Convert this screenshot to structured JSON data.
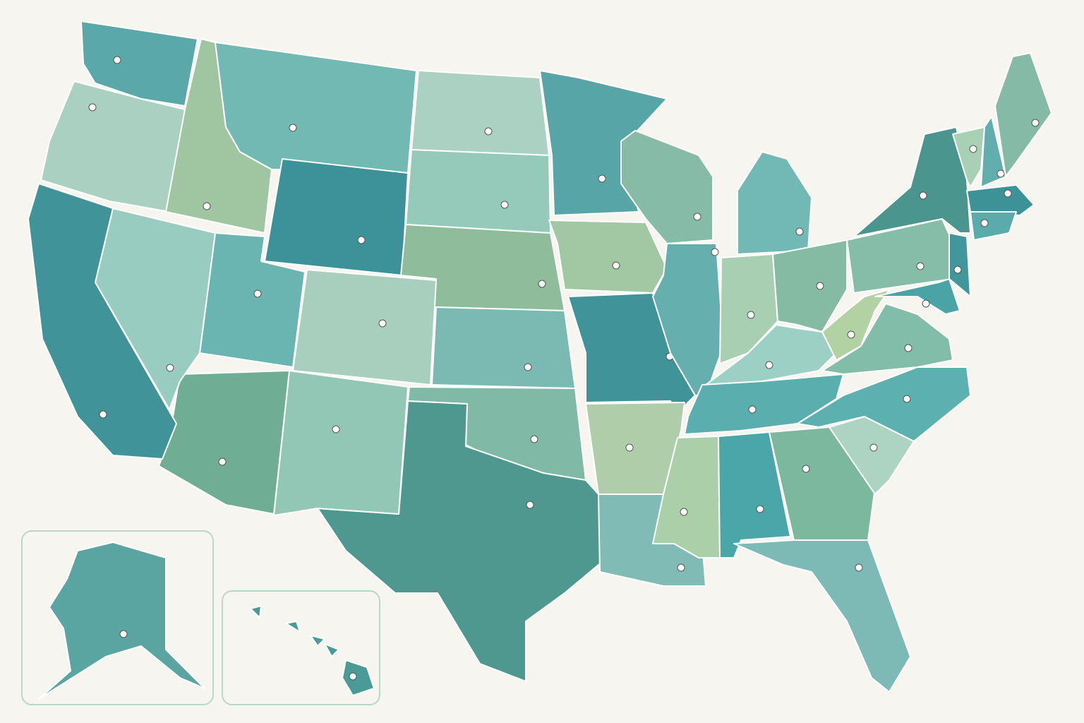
{
  "map": {
    "regions": [
      {
        "color": "#5aa9a8"
      },
      {
        "color": "#a9d0c0"
      },
      {
        "color": "#9fc6a0"
      },
      {
        "color": "#72b8b3"
      },
      {
        "color": "#3d9299"
      },
      {
        "color": "#abd1c2"
      },
      {
        "color": "#95c9b9"
      },
      {
        "color": "#8fbc9b"
      },
      {
        "color": "#a8cfbd"
      },
      {
        "color": "#7abab3"
      },
      {
        "color": "#80b9a5"
      },
      {
        "color": "#4f9890"
      },
      {
        "color": "#92c7b6"
      },
      {
        "color": "#6fad95"
      },
      {
        "color": "#6ab4b2"
      },
      {
        "color": "#99ccc0"
      },
      {
        "color": "#3f9399"
      },
      {
        "color": "#58a5a8"
      },
      {
        "color": "#a1c7a3"
      },
      {
        "color": "#3f9399"
      },
      {
        "color": "#aecda8"
      },
      {
        "color": "#80bbb5"
      },
      {
        "color": "#85bba7"
      },
      {
        "color": "#65b0ae"
      },
      {
        "color": "#72b9b6"
      },
      {
        "color": "#a8cfb1"
      },
      {
        "color": "#85bba3"
      },
      {
        "color": "#9dd0c4"
      },
      {
        "color": "#5aaeae"
      },
      {
        "color": "#abcfa8"
      },
      {
        "color": "#4aa6a8"
      },
      {
        "color": "#7cb89e"
      },
      {
        "color": "#7dbab6"
      },
      {
        "color": "#add3c3"
      },
      {
        "color": "#5cb0ad"
      },
      {
        "color": "#82bdaa"
      },
      {
        "color": "#b3d2a4"
      },
      {
        "color": "#85bda8"
      },
      {
        "color": "#4b958f"
      },
      {
        "color": "#42979c"
      },
      {
        "color": "#4aa3a5"
      },
      {
        "color": "#a8d0b5"
      },
      {
        "color": "#62aeae"
      },
      {
        "color": "#85bba6"
      },
      {
        "color": "#3c9297"
      },
      {
        "color": "#5aacaa"
      },
      {
        "color": "#5aa5a1"
      },
      {
        "color": "#4a9b98"
      }
    ]
  }
}
